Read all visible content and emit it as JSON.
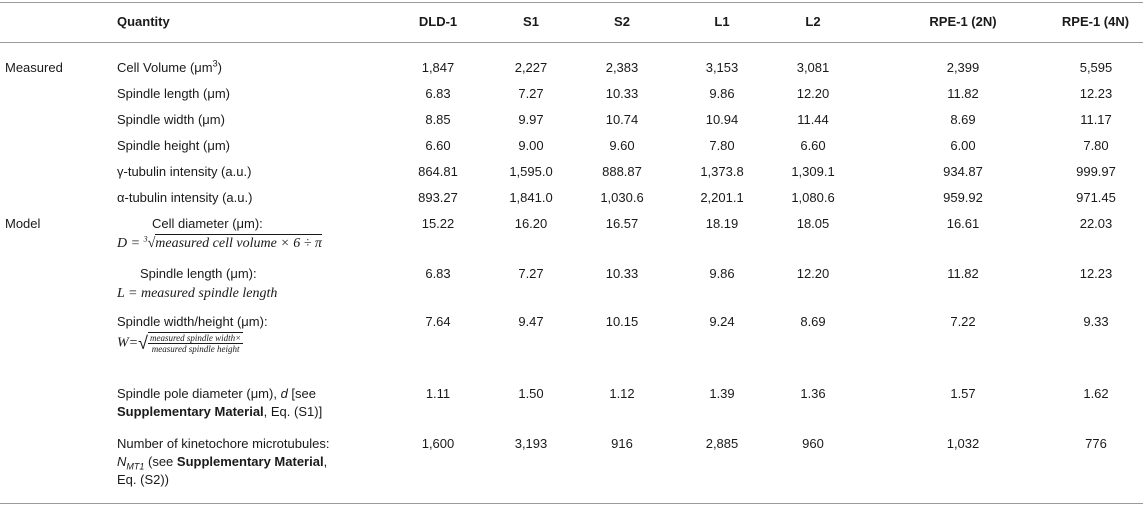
{
  "headers": [
    "",
    "Quantity",
    "DLD-1",
    "S1",
    "S2",
    "L1",
    "L2",
    "RPE-1 (2N)",
    "RPE-1 (4N)"
  ],
  "categories": {
    "measured": "Measured",
    "model": "Model"
  },
  "measured_rows": [
    {
      "label": "Cell Volume (μm",
      "label_sup": "3",
      "label_tail": ")",
      "values": [
        "1,847",
        "2,227",
        "2,383",
        "3,153",
        "3,081",
        "2,399",
        "5,595"
      ]
    },
    {
      "label": "Spindle length (μm)",
      "values": [
        "6.83",
        "7.27",
        "10.33",
        "9.86",
        "12.20",
        "11.82",
        "12.23"
      ]
    },
    {
      "label": "Spindle width (μm)",
      "values": [
        "8.85",
        "9.97",
        "10.74",
        "10.94",
        "11.44",
        "8.69",
        "11.17"
      ]
    },
    {
      "label": "Spindle height (μm)",
      "values": [
        "6.60",
        "9.00",
        "9.60",
        "7.80",
        "6.60",
        "6.00",
        "7.80"
      ]
    },
    {
      "label": "γ-tubulin intensity (a.u.)",
      "values": [
        "864.81",
        "1,595.0",
        "888.87",
        "1,373.8",
        "1,309.1",
        "934.87",
        "999.97"
      ]
    },
    {
      "label": "α-tubulin intensity (a.u.)",
      "values": [
        "893.27",
        "1,841.0",
        "1,030.6",
        "2,201.1",
        "1,080.6",
        "959.92",
        "971.45"
      ]
    }
  ],
  "model_rows": {
    "cell_diameter": {
      "label": "Cell diameter (μm):",
      "formula_lhs": "D = ",
      "formula_root_index": "3",
      "formula_body": "measured cell volume × 6 ÷ π",
      "values": [
        "15.22",
        "16.20",
        "16.57",
        "18.19",
        "18.05",
        "16.61",
        "22.03"
      ]
    },
    "spindle_length": {
      "label": "Spindle length (μm):",
      "formula": "L = measured spindle length",
      "values": [
        "6.83",
        "7.27",
        "10.33",
        "9.86",
        "12.20",
        "11.82",
        "12.23"
      ]
    },
    "spindle_width_height": {
      "label": "Spindle width/height (μm):",
      "formula_lhs": "W=",
      "formula_num": "measured spindle width×",
      "formula_den": "measured spindle height",
      "values": [
        "7.64",
        "9.47",
        "10.15",
        "9.24",
        "8.69",
        "7.22",
        "9.33"
      ]
    },
    "pole_diameter": {
      "line1": "Spindle pole diameter (μm), ",
      "line1_var": "d",
      "line1_tail": " [see",
      "line2_bold": "Supplementary Material",
      "line2_tail": ", Eq. (S1)]",
      "values": [
        "1.11",
        "1.50",
        "1.12",
        "1.39",
        "1.36",
        "1.57",
        "1.62"
      ]
    },
    "kinetochore": {
      "line1": "Number of kinetochore microtubules:",
      "line2_var": "N",
      "line2_sub": "MT1",
      "line2_mid": " (see ",
      "line2_bold": "Supplementary Material",
      "line2_tail": ",",
      "line3": "Eq. (S2))",
      "values": [
        "1,600",
        "3,193",
        "916",
        "2,885",
        "960",
        "1,032",
        "776"
      ]
    }
  }
}
